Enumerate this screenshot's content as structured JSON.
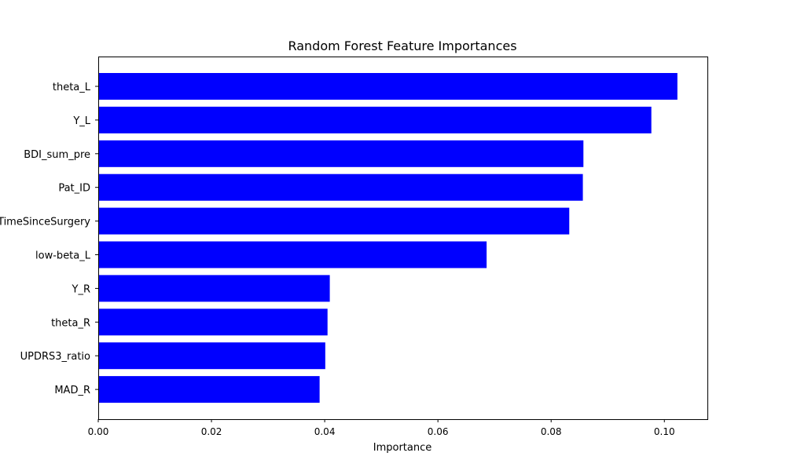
{
  "chart_data": {
    "type": "bar",
    "orientation": "horizontal",
    "title": "Random Forest Feature Importances",
    "xlabel": "Importance",
    "ylabel": "",
    "xlim": [
      0,
      0.1076
    ],
    "xticks": [
      "0.00",
      "0.02",
      "0.04",
      "0.06",
      "0.08",
      "0.10"
    ],
    "categories": [
      "theta_L",
      "Y_L",
      "BDI_sum_pre",
      "Pat_ID",
      "TimeSinceSurgery",
      "low-beta_L",
      "Y_R",
      "theta_R",
      "UPDRS3_ratio",
      "MAD_R"
    ],
    "values": [
      0.1023,
      0.0977,
      0.0857,
      0.0856,
      0.0832,
      0.0686,
      0.0409,
      0.0405,
      0.0401,
      0.0391
    ],
    "bar_color": "#0000ff",
    "grid": false,
    "legend": "none"
  }
}
